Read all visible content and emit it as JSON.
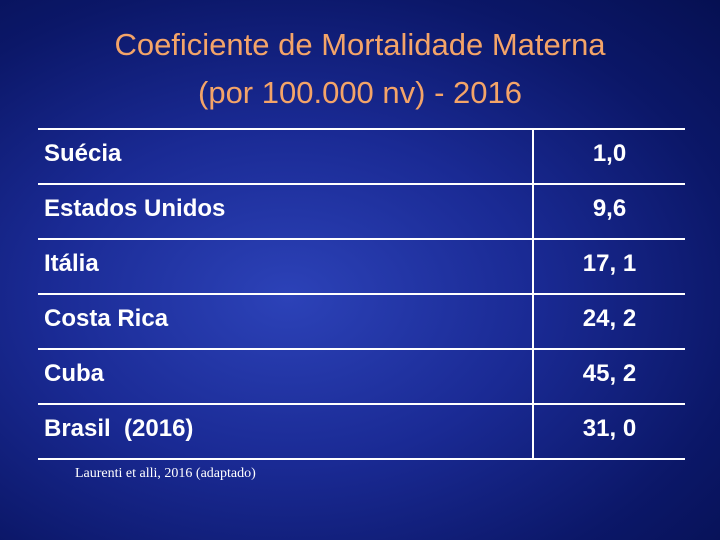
{
  "header": {
    "title": [
      "Coeficiente de Mortalidade Materna",
      "(por 100.000 nv) - 2016"
    ]
  },
  "table": {
    "rows": [
      [
        "Suécia",
        "1,0"
      ],
      [
        "Estados Unidos",
        "9,6"
      ],
      [
        "Itália",
        "17, 1"
      ],
      [
        "Costa Rica",
        "24, 2"
      ],
      [
        "Cuba",
        "45, 2"
      ],
      [
        "Brasil  (2016)",
        "31, 0"
      ]
    ]
  },
  "source": "Laurenti et alli, 2016 (adaptado)"
}
